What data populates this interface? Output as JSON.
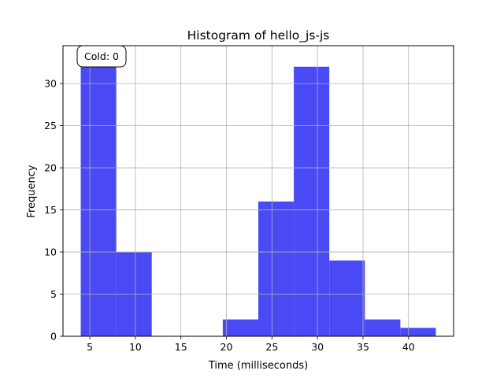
{
  "chart_data": {
    "type": "bar",
    "title": "Histogram of hello_js-js",
    "xlabel": "Time (milliseconds)",
    "ylabel": "Frequency",
    "annotation": "Cold: 0",
    "bar_color": "#4a4af5",
    "grid": true,
    "xlim": [
      2.05,
      44.95
    ],
    "ylim": [
      0,
      34.5
    ],
    "xticks": [
      5,
      10,
      15,
      20,
      25,
      30,
      35,
      40
    ],
    "yticks": [
      0,
      5,
      10,
      15,
      20,
      25,
      30
    ],
    "bins": [
      {
        "x0": 4.0,
        "x1": 7.9,
        "count": 32
      },
      {
        "x0": 7.9,
        "x1": 11.8,
        "count": 10
      },
      {
        "x0": 11.8,
        "x1": 15.7,
        "count": 0
      },
      {
        "x0": 15.7,
        "x1": 19.6,
        "count": 0
      },
      {
        "x0": 19.6,
        "x1": 23.5,
        "count": 2
      },
      {
        "x0": 23.5,
        "x1": 27.4,
        "count": 16
      },
      {
        "x0": 27.4,
        "x1": 31.3,
        "count": 32
      },
      {
        "x0": 31.3,
        "x1": 35.2,
        "count": 9
      },
      {
        "x0": 35.2,
        "x1": 39.1,
        "count": 2
      },
      {
        "x0": 39.1,
        "x1": 43.0,
        "count": 1
      }
    ]
  }
}
